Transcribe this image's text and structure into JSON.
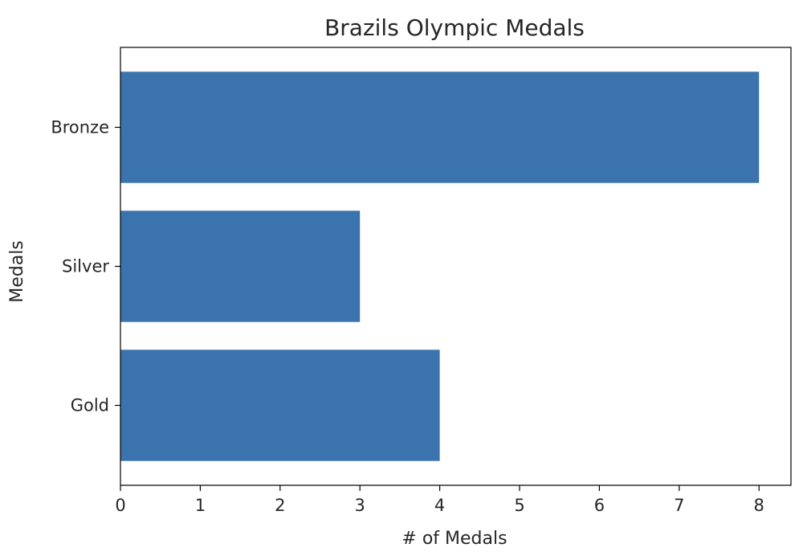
{
  "chart_data": {
    "type": "bar",
    "orientation": "horizontal",
    "title": "Brazils Olympic Medals",
    "xlabel": "# of Medals",
    "ylabel": "Medals",
    "categories": [
      "Gold",
      "Silver",
      "Bronze"
    ],
    "values": [
      4,
      3,
      8
    ],
    "xlim": [
      0,
      8.4
    ],
    "xticks": [
      "0",
      "1",
      "2",
      "3",
      "4",
      "5",
      "6",
      "7",
      "8"
    ],
    "grid": false,
    "bar_color": "#3a73ad"
  }
}
